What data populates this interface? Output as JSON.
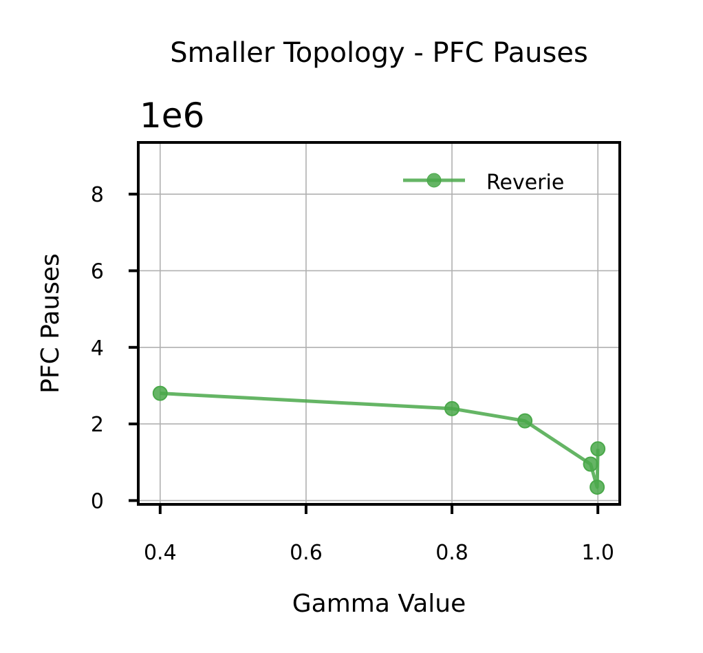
{
  "chart_data": {
    "type": "line",
    "title": "Smaller Topology - PFC Pauses",
    "xlabel": "Gamma Value",
    "ylabel": "PFC Pauses",
    "y_offset_label": "1e6",
    "y_scale_multiplier": 1000000,
    "xlim": [
      0.37,
      1.03
    ],
    "ylim": [
      -100000,
      9350000
    ],
    "x_ticks": [
      0.4,
      0.6,
      0.8,
      1.0
    ],
    "x_tick_labels": [
      "0.4",
      "0.6",
      "0.8",
      "1.0"
    ],
    "y_ticks": [
      0,
      2000000,
      4000000,
      6000000,
      8000000
    ],
    "y_tick_labels": [
      "0",
      "2",
      "4",
      "6",
      "8"
    ],
    "grid": true,
    "legend_position": "upper right",
    "series": [
      {
        "name": "Reverie",
        "color": "#4aa84a",
        "marker": "circle",
        "points": [
          {
            "x": 0.4,
            "y": 2800000
          },
          {
            "x": 0.8,
            "y": 2400000
          },
          {
            "x": 0.9,
            "y": 2080000
          },
          {
            "x": 0.99,
            "y": 950000
          },
          {
            "x": 0.999,
            "y": 350000
          },
          {
            "x": 1.0,
            "y": 1350000
          }
        ]
      }
    ]
  }
}
